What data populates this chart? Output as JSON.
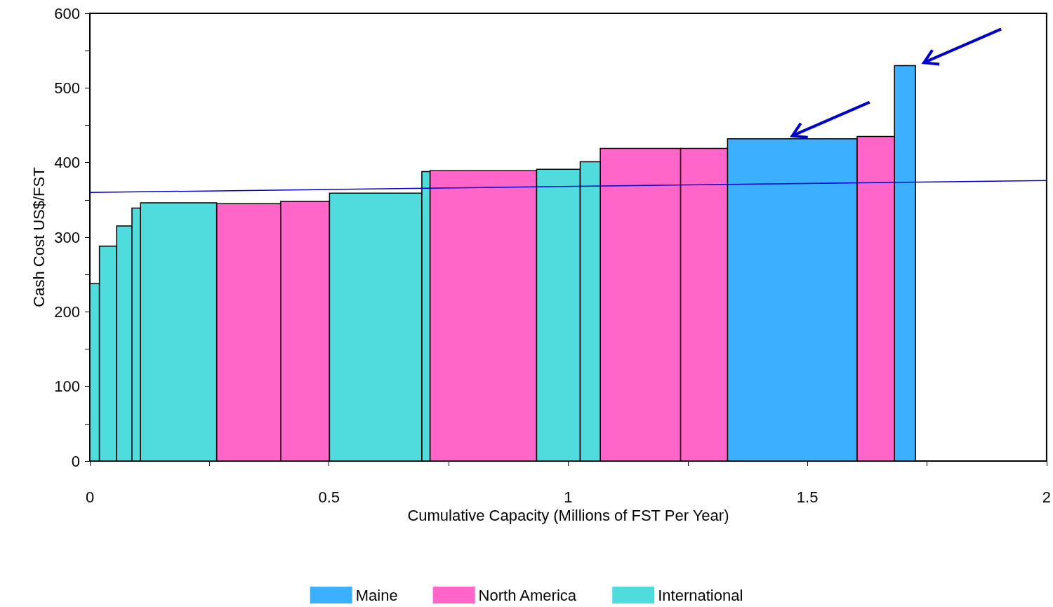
{
  "chart_data": {
    "type": "histogram",
    "xlabel": "Cumulative Capacity (Millions of FST Per Year)",
    "ylabel": "Cash Cost US$/FST",
    "bins": [
      0,
      0.02,
      0.056,
      0.088,
      0.106,
      0.265,
      0.399,
      0.501,
      0.694,
      0.711,
      0.934,
      1.025,
      1.067,
      1.235,
      1.333,
      1.604,
      1.682,
      1.726
    ],
    "series": [
      {
        "name": "Maine",
        "color": "#3cb0fc",
        "values": [
          null,
          null,
          null,
          null,
          null,
          null,
          null,
          null,
          null,
          null,
          null,
          null,
          null,
          null,
          432,
          null,
          530
        ]
      },
      {
        "name": "North America",
        "color": "#ff66c7",
        "values": [
          null,
          null,
          null,
          null,
          null,
          345,
          348,
          null,
          null,
          389,
          null,
          null,
          419,
          419,
          null,
          435,
          null
        ]
      },
      {
        "name": "International",
        "color": "#50dcdc",
        "values": [
          238,
          288,
          315,
          339,
          346,
          null,
          null,
          359,
          388,
          null,
          391,
          401,
          null,
          null,
          null,
          null,
          null
        ]
      },
      {
        "type": "line",
        "color": "#0000cc",
        "x": [
          0,
          2
        ],
        "values": [
          360,
          376
        ]
      }
    ],
    "xlim": [
      0,
      2
    ],
    "xticks": [
      0,
      {
        "value": 0.25,
        "label": null
      },
      0.5,
      {
        "value": 0.75,
        "label": null
      },
      1,
      {
        "value": 1.25,
        "label": null
      },
      1.5,
      {
        "value": 1.75,
        "label": null
      },
      2
    ],
    "ylim": [
      0,
      600
    ],
    "yticks": [
      0,
      {
        "value": 50,
        "label": null
      },
      100,
      {
        "value": 150,
        "label": null
      },
      200,
      {
        "value": 250,
        "label": null
      },
      300,
      {
        "value": 350,
        "label": null
      },
      400,
      {
        "value": 450,
        "label": null
      },
      500,
      {
        "value": 550,
        "label": null
      },
      600
    ],
    "grid": false,
    "legend": "bottom",
    "marker": "none",
    "line_style": "solid"
  }
}
